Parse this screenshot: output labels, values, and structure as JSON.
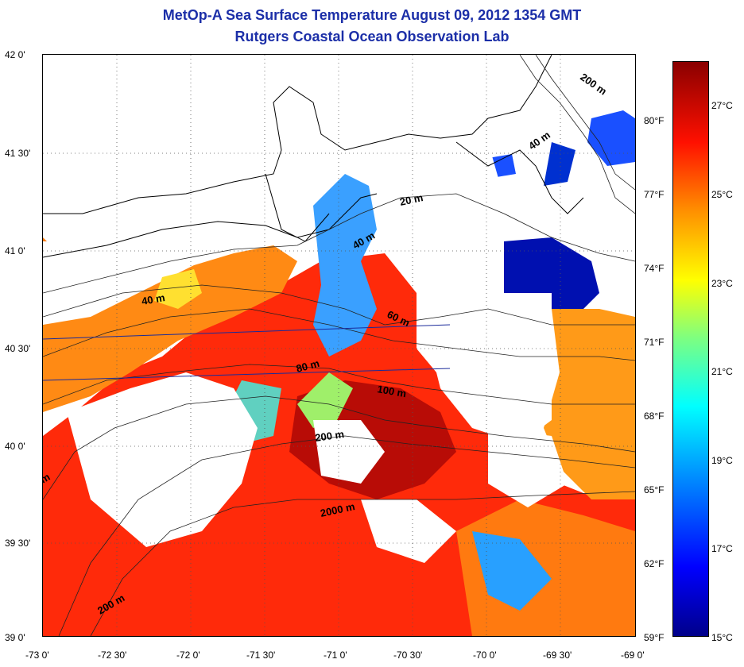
{
  "title": "MetOp-A Sea Surface Temperature August 09, 2012 1354 GMT",
  "subtitle": "Rutgers Coastal Ocean Observation Lab",
  "lat_labels": [
    "42 0'",
    "41 30'",
    "41 0'",
    "40 30'",
    "40 0'",
    "39 30'",
    "39 0'"
  ],
  "lon_labels": [
    "-73 0'",
    "-72 30'",
    "-72 0'",
    "-71 30'",
    "-71 0'",
    "-70 30'",
    "-70 0'",
    "-69 30'",
    "-69 0'"
  ],
  "contour_labels": [
    "200 m",
    "40 m",
    "20 m",
    "40 m",
    "40 m",
    "60 m",
    "80 m",
    "100 m",
    "200 m",
    "2000 m",
    "200 m",
    "m"
  ],
  "colorbar": {
    "celsius": [
      "27°C",
      "25°C",
      "23°C",
      "21°C",
      "19°C",
      "17°C",
      "15°C"
    ],
    "fahrenheit": [
      "80°F",
      "77°F",
      "74°F",
      "71°F",
      "68°F",
      "65°F",
      "62°F",
      "59°F"
    ]
  },
  "colors": {
    "title": "#1c2fa8"
  }
}
